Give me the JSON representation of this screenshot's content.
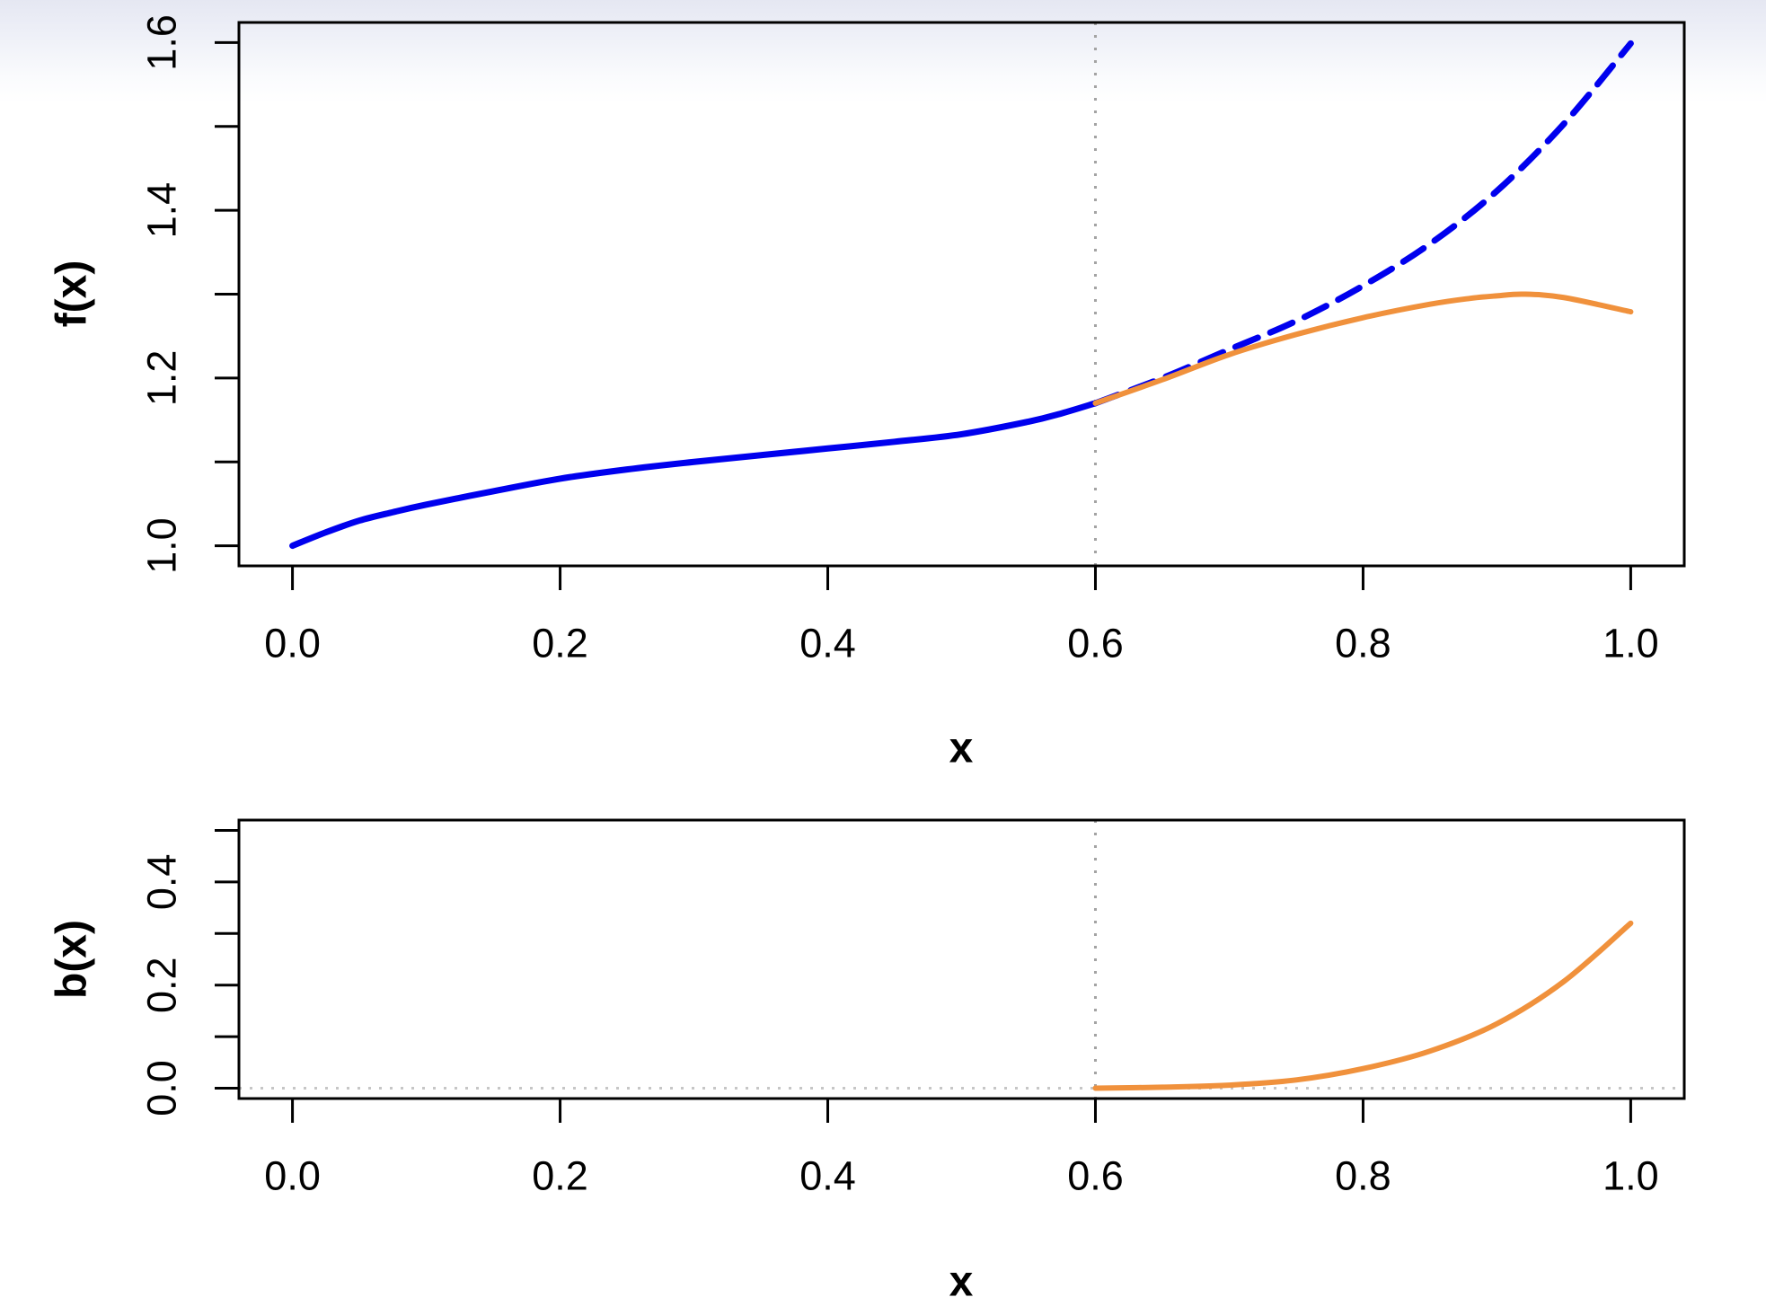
{
  "figure": {
    "description": "Two stacked R-style line plots: top shows f(x) with a solid blue observed curve, a dashed blue extrapolation and a solid orange bent-down alternative after x = 0.6; bottom shows the bend amount b(x).",
    "background_gradient_top": "#e5e7f2",
    "background_color": "#ffffff",
    "axis_color": "#000000"
  },
  "chart_data": [
    {
      "type": "line",
      "title": "",
      "xlabel": "x",
      "ylabel": "f(x)",
      "xlim": [
        -0.04,
        1.04
      ],
      "ylim": [
        0.976,
        1.624
      ],
      "grid": false,
      "legend": null,
      "xticks": [
        {
          "v": 0.0,
          "label": "0.0"
        },
        {
          "v": 0.2,
          "label": "0.2"
        },
        {
          "v": 0.4,
          "label": "0.4"
        },
        {
          "v": 0.6,
          "label": "0.6"
        },
        {
          "v": 0.8,
          "label": "0.8"
        },
        {
          "v": 1.0,
          "label": "1.0"
        }
      ],
      "yticks": [
        {
          "v": 1.0,
          "label": "1.0"
        },
        {
          "v": 1.1,
          "label": ""
        },
        {
          "v": 1.2,
          "label": "1.2"
        },
        {
          "v": 1.3,
          "label": ""
        },
        {
          "v": 1.4,
          "label": "1.4"
        },
        {
          "v": 1.5,
          "label": ""
        },
        {
          "v": 1.6,
          "label": "1.6"
        }
      ],
      "reference_lines": [
        {
          "orientation": "vertical",
          "at": 0.6,
          "style": "dotted",
          "color": "#a3a3a3"
        }
      ],
      "series": [
        {
          "name": "f-solid-blue",
          "color": "#0000ee",
          "dash": "solid",
          "width": 7,
          "points": [
            [
              0.0,
              1.0
            ],
            [
              0.025,
              1.016
            ],
            [
              0.05,
              1.03
            ],
            [
              0.075,
              1.04
            ],
            [
              0.1,
              1.049
            ],
            [
              0.15,
              1.065
            ],
            [
              0.2,
              1.08
            ],
            [
              0.25,
              1.091
            ],
            [
              0.3,
              1.1
            ],
            [
              0.35,
              1.108
            ],
            [
              0.4,
              1.116
            ],
            [
              0.45,
              1.124
            ],
            [
              0.5,
              1.133
            ],
            [
              0.55,
              1.148
            ],
            [
              0.575,
              1.158
            ],
            [
              0.6,
              1.17
            ]
          ]
        },
        {
          "name": "f-dashed-blue-extrapolation",
          "color": "#0000ee",
          "dash": "dashed",
          "width": 7,
          "points": [
            [
              0.6,
              1.17
            ],
            [
              0.65,
              1.2
            ],
            [
              0.7,
              1.234
            ],
            [
              0.75,
              1.268
            ],
            [
              0.8,
              1.31
            ],
            [
              0.85,
              1.36
            ],
            [
              0.9,
              1.423
            ],
            [
              0.95,
              1.503
            ],
            [
              1.0,
              1.599
            ]
          ]
        },
        {
          "name": "f-orange-bent",
          "color": "#f0913c",
          "dash": "solid",
          "width": 6,
          "points": [
            [
              0.6,
              1.17
            ],
            [
              0.65,
              1.198
            ],
            [
              0.7,
              1.228
            ],
            [
              0.75,
              1.252
            ],
            [
              0.8,
              1.272
            ],
            [
              0.85,
              1.288
            ],
            [
              0.88,
              1.295
            ],
            [
              0.9,
              1.298
            ],
            [
              0.92,
              1.3
            ],
            [
              0.95,
              1.296
            ],
            [
              1.0,
              1.279
            ]
          ]
        }
      ]
    },
    {
      "type": "line",
      "title": "",
      "xlabel": "x",
      "ylabel": "b(x)",
      "xlim": [
        -0.04,
        1.04
      ],
      "ylim": [
        -0.02,
        0.52
      ],
      "grid": false,
      "legend": null,
      "xticks": [
        {
          "v": 0.0,
          "label": "0.0"
        },
        {
          "v": 0.2,
          "label": "0.2"
        },
        {
          "v": 0.4,
          "label": "0.4"
        },
        {
          "v": 0.6,
          "label": "0.6"
        },
        {
          "v": 0.8,
          "label": "0.8"
        },
        {
          "v": 1.0,
          "label": "1.0"
        }
      ],
      "yticks": [
        {
          "v": 0.0,
          "label": "0.0"
        },
        {
          "v": 0.1,
          "label": ""
        },
        {
          "v": 0.2,
          "label": "0.2"
        },
        {
          "v": 0.3,
          "label": ""
        },
        {
          "v": 0.4,
          "label": "0.4"
        },
        {
          "v": 0.5,
          "label": ""
        }
      ],
      "reference_lines": [
        {
          "orientation": "vertical",
          "at": 0.6,
          "style": "dotted",
          "color": "#a3a3a3"
        },
        {
          "orientation": "horizontal",
          "at": 0.0,
          "style": "dotted",
          "color": "#c6c6c6"
        }
      ],
      "series": [
        {
          "name": "b-orange-bend-amount",
          "color": "#f0913c",
          "dash": "solid",
          "width": 6,
          "points": [
            [
              0.6,
              0.0
            ],
            [
              0.65,
              0.002
            ],
            [
              0.7,
              0.006
            ],
            [
              0.75,
              0.016
            ],
            [
              0.8,
              0.038
            ],
            [
              0.85,
              0.072
            ],
            [
              0.9,
              0.125
            ],
            [
              0.95,
              0.207
            ],
            [
              1.0,
              0.32
            ]
          ]
        }
      ]
    }
  ]
}
